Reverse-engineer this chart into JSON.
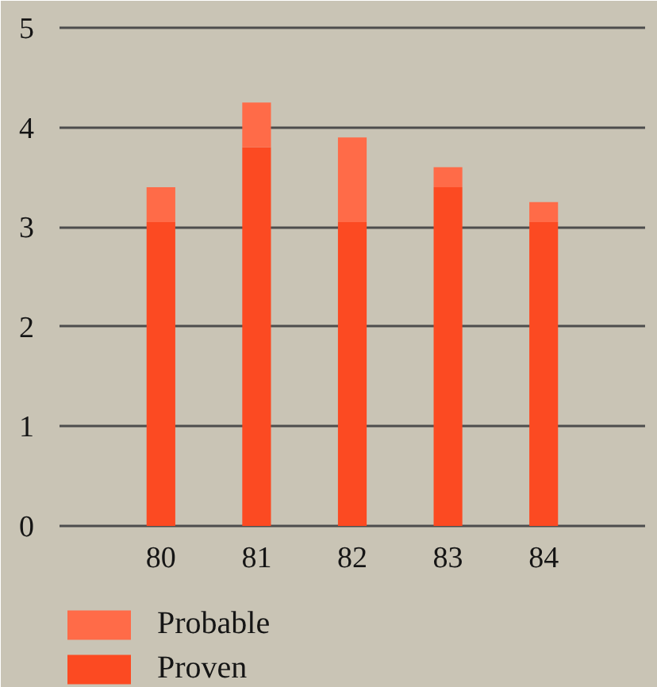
{
  "chart_data": {
    "type": "bar",
    "categories": [
      "80",
      "81",
      "82",
      "83",
      "84"
    ],
    "stacked": true,
    "series": [
      {
        "name": "Proven",
        "color": "#fc4a22",
        "values": [
          3.05,
          3.8,
          3.05,
          3.4,
          3.05
        ]
      },
      {
        "name": "Probable",
        "color": "#ff6b48",
        "values": [
          0.35,
          0.45,
          0.85,
          0.2,
          0.2
        ]
      }
    ],
    "ylim": [
      0,
      5
    ],
    "yticks": [
      0,
      1,
      2,
      3,
      4,
      5
    ],
    "grid": "y",
    "legend": "bottom left"
  }
}
